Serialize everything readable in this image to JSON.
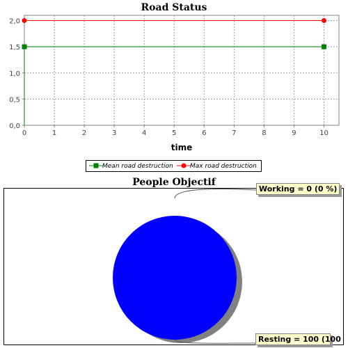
{
  "line_chart": {
    "title": "Road Status",
    "legend": [
      {
        "label": "Mean road destruction",
        "color": "#008000",
        "marker": "square"
      },
      {
        "label": "Max road destruction",
        "color": "#ff0000",
        "marker": "circle"
      }
    ]
  },
  "pie_chart": {
    "title": "People Objectif",
    "labels": [
      "Working = 0 (0 %)",
      "Resting = 100 (100"
    ]
  },
  "chart_data": [
    {
      "type": "line",
      "title": "Road Status",
      "xlabel": "time",
      "ylabel": "",
      "xlim": [
        0,
        10.5
      ],
      "ylim": [
        0.0,
        2.1
      ],
      "x_ticks": [
        "0",
        "1",
        "2",
        "3",
        "4",
        "5",
        "6",
        "7",
        "8",
        "9",
        "10"
      ],
      "y_ticks": [
        "0,0",
        "0,5",
        "1,0",
        "1,5",
        "2,0"
      ],
      "grid": true,
      "legend_position": "bottom",
      "series": [
        {
          "name": "Mean road destruction",
          "color": "#008000",
          "x": [
            0,
            10
          ],
          "y": [
            1.5,
            1.5
          ]
        },
        {
          "name": "Max road destruction",
          "color": "#ff0000",
          "x": [
            0,
            10
          ],
          "y": [
            2.0,
            2.0
          ]
        }
      ]
    },
    {
      "type": "pie",
      "title": "People Objectif",
      "slices": [
        {
          "label": "Working",
          "value": 0,
          "percent": 0,
          "color": "#0000ff"
        },
        {
          "label": "Resting",
          "value": 100,
          "percent": 100,
          "color": "#0000ff"
        }
      ]
    }
  ]
}
